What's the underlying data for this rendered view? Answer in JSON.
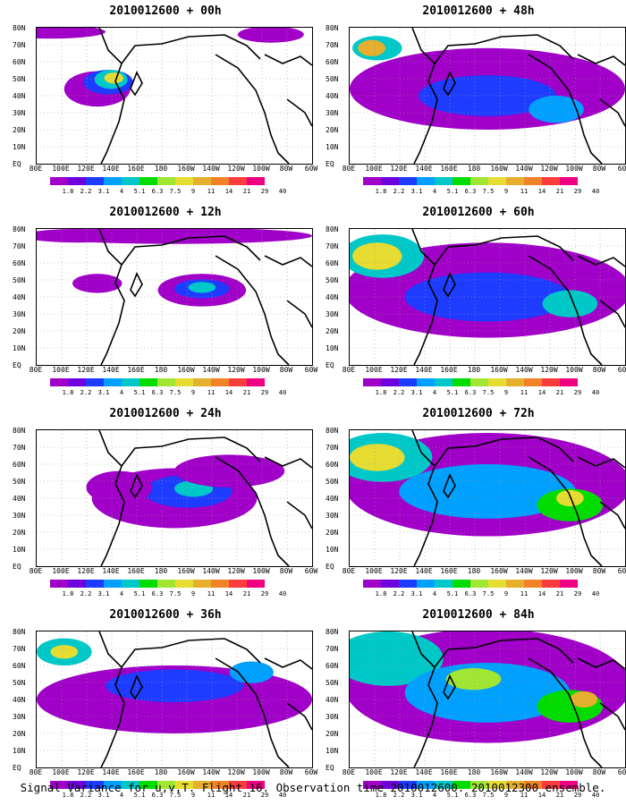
{
  "colorbar": {
    "labels": [
      "1.8",
      "2.2",
      "3.1",
      "4",
      "5.1",
      "6.3",
      "7.5",
      "9",
      "11",
      "14",
      "21",
      "29",
      "40"
    ],
    "colors": [
      "#a000c8",
      "#6e00dc",
      "#1e3cff",
      "#00a0ff",
      "#00c8c8",
      "#00dc00",
      "#a0e632",
      "#e6dc32",
      "#e6af2d",
      "#f08228",
      "#fa3c3c",
      "#f00082",
      "#ffffff"
    ]
  },
  "axes": {
    "y_labels": [
      "80N",
      "70N",
      "60N",
      "50N",
      "40N",
      "30N",
      "20N",
      "10N",
      "EQ"
    ],
    "x_labels": [
      "80E",
      "100E",
      "120E",
      "140E",
      "160E",
      "180",
      "160W",
      "140W",
      "120W",
      "100W",
      "80W",
      "60W"
    ]
  },
  "caption": "Signal Variance for u,v,T. Flight 16. Observation time 2010012600. 2010012300 ensemble.",
  "chart_data": [
    {
      "type": "heatmap",
      "title": "2010012600 + 00h",
      "lead_hours": 0,
      "colorbar_levels": [
        1.8,
        2.2,
        3.1,
        4,
        5.1,
        6.3,
        7.5,
        9,
        11,
        14,
        21,
        29,
        40
      ],
      "x_range": [
        "80E",
        "60W"
      ],
      "y_range": [
        "EQ",
        "80N"
      ]
    },
    {
      "type": "heatmap",
      "title": "2010012600 + 12h",
      "lead_hours": 12,
      "colorbar_levels": [
        1.8,
        2.2,
        3.1,
        4,
        5.1,
        6.3,
        7.5,
        9,
        11,
        14,
        21,
        29,
        40
      ],
      "x_range": [
        "80E",
        "60W"
      ],
      "y_range": [
        "EQ",
        "80N"
      ]
    },
    {
      "type": "heatmap",
      "title": "2010012600 + 24h",
      "lead_hours": 24,
      "colorbar_levels": [
        1.8,
        2.2,
        3.1,
        4,
        5.1,
        6.3,
        7.5,
        9,
        11,
        14,
        21,
        29,
        40
      ],
      "x_range": [
        "80E",
        "60W"
      ],
      "y_range": [
        "EQ",
        "80N"
      ]
    },
    {
      "type": "heatmap",
      "title": "2010012600 + 36h",
      "lead_hours": 36,
      "colorbar_levels": [
        1.8,
        2.2,
        3.1,
        4,
        5.1,
        6.3,
        7.5,
        9,
        11,
        14,
        21,
        29,
        40
      ],
      "x_range": [
        "80E",
        "60W"
      ],
      "y_range": [
        "EQ",
        "80N"
      ]
    },
    {
      "type": "heatmap",
      "title": "2010012600 + 48h",
      "lead_hours": 48,
      "colorbar_levels": [
        1.8,
        2.2,
        3.1,
        4,
        5.1,
        6.3,
        7.5,
        9,
        11,
        14,
        21,
        29,
        40
      ],
      "x_range": [
        "80E",
        "60W"
      ],
      "y_range": [
        "EQ",
        "80N"
      ]
    },
    {
      "type": "heatmap",
      "title": "2010012600 + 60h",
      "lead_hours": 60,
      "colorbar_levels": [
        1.8,
        2.2,
        3.1,
        4,
        5.1,
        6.3,
        7.5,
        9,
        11,
        14,
        21,
        29,
        40
      ],
      "x_range": [
        "80E",
        "60W"
      ],
      "y_range": [
        "EQ",
        "80N"
      ]
    },
    {
      "type": "heatmap",
      "title": "2010012600 + 72h",
      "lead_hours": 72,
      "colorbar_levels": [
        1.8,
        2.2,
        3.1,
        4,
        5.1,
        6.3,
        7.5,
        9,
        11,
        14,
        21,
        29,
        40
      ],
      "x_range": [
        "80E",
        "60W"
      ],
      "y_range": [
        "EQ",
        "80N"
      ]
    },
    {
      "type": "heatmap",
      "title": "2010012600 + 84h",
      "lead_hours": 84,
      "colorbar_levels": [
        1.8,
        2.2,
        3.1,
        4,
        5.1,
        6.3,
        7.5,
        9,
        11,
        14,
        21,
        29,
        40
      ],
      "x_range": [
        "80E",
        "60W"
      ],
      "y_range": [
        "EQ",
        "80N"
      ]
    }
  ]
}
